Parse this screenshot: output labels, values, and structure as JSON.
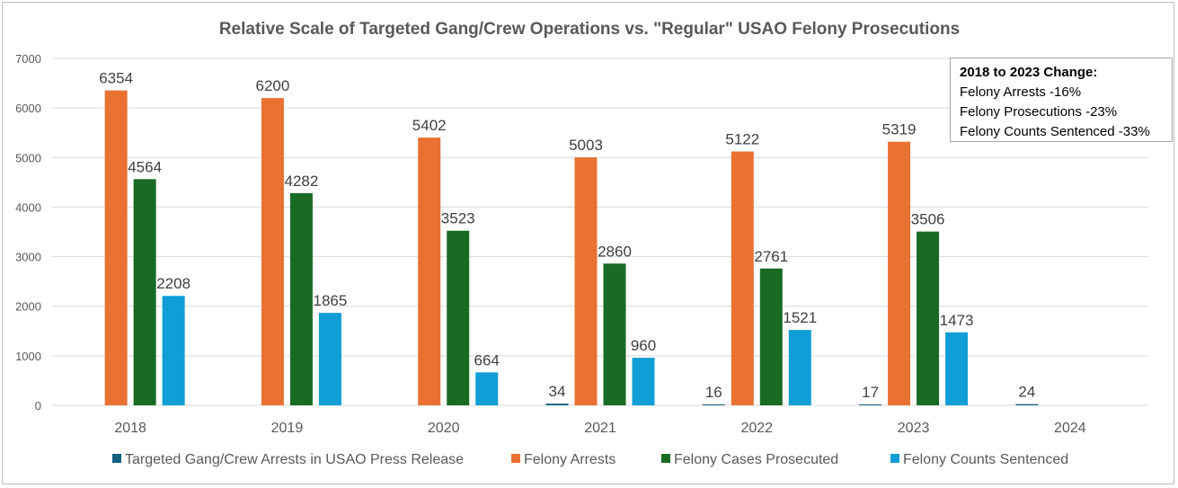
{
  "colors": {
    "targeted": "#156082",
    "arrests": "#E97132",
    "prosecuted": "#196B24",
    "sentenced": "#0F9ED5",
    "grid": "#d9d9d9",
    "text": "#595959"
  },
  "note": {
    "heading": "2018 to 2023 Change:",
    "lines": [
      "Felony Arrests -16%",
      "Felony Prosecutions -23%",
      "Felony Counts Sentenced -33%"
    ]
  },
  "chart_data": {
    "type": "bar",
    "title": "Relative Scale of Targeted Gang/Crew Operations vs. \"Regular\" USAO Felony Prosecutions",
    "categories": [
      "2018",
      "2019",
      "2020",
      "2021",
      "2022",
      "2023",
      "2024"
    ],
    "ylim": [
      0,
      7000
    ],
    "yticks": [
      0,
      1000,
      2000,
      3000,
      4000,
      5000,
      6000,
      7000
    ],
    "grid": true,
    "legend_position": "bottom",
    "series": [
      {
        "name": "Targeted Gang/Crew Arrests in USAO Press Release",
        "values": [
          null,
          null,
          null,
          34,
          16,
          17,
          24
        ],
        "labels": [
          "",
          "",
          "",
          "34",
          "16",
          "17",
          "24"
        ]
      },
      {
        "name": "Felony Arrests",
        "values": [
          6354,
          6200,
          5402,
          5003,
          5122,
          5319,
          null
        ],
        "labels": [
          "6354",
          "6200",
          "5402",
          "5003",
          "5122",
          "5319",
          ""
        ]
      },
      {
        "name": "Felony Cases Prosecuted",
        "values": [
          4564,
          4282,
          3523,
          2860,
          2761,
          3506,
          null
        ],
        "labels": [
          "4564",
          "4282",
          "3523",
          "2860",
          "2761",
          "3506",
          ""
        ]
      },
      {
        "name": "Felony Counts Sentenced",
        "values": [
          2208,
          1865,
          664,
          960,
          1521,
          1473,
          null
        ],
        "labels": [
          "2208",
          "1865",
          "664",
          "960",
          "1521",
          "1473",
          ""
        ]
      }
    ]
  }
}
